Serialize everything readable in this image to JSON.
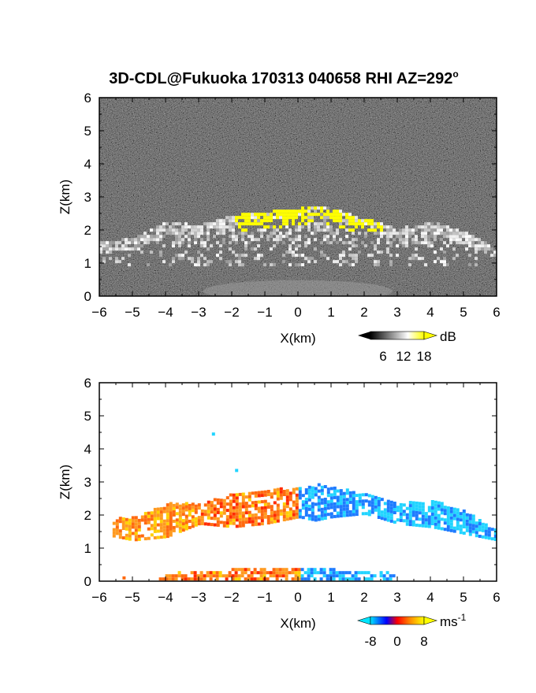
{
  "figure_title": "3D-CDL@Fukuoka 170313 040658 RHI AZ=292",
  "title_superscript": "o",
  "chart_data": [
    {
      "type": "heatmap",
      "panel": "reflectivity",
      "title": "3D-CDL@Fukuoka 170313 040658 RHI AZ=292°",
      "xlabel": "X(km)",
      "ylabel": "Z(km)",
      "xlim": [
        -6,
        6
      ],
      "ylim": [
        0,
        6
      ],
      "xticks": [
        "-6",
        "-5",
        "-4",
        "-3",
        "-2",
        "-1",
        "0",
        "1",
        "2",
        "3",
        "4",
        "5",
        "6"
      ],
      "yticks": [
        "0",
        "1",
        "2",
        "3",
        "4",
        "5",
        "6"
      ],
      "colorbar": {
        "unit": "dB",
        "ticks": [
          "6",
          "12",
          "18"
        ],
        "values": [
          6,
          12,
          18
        ],
        "range": [
          0,
          20
        ],
        "colors": [
          "#000000",
          "#ffffff",
          "#ffff00"
        ],
        "extend": "both"
      },
      "cloud_layer": {
        "top_profile_x": [
          -6,
          -5,
          -4,
          -3,
          -2,
          -1,
          0,
          0.5,
          1,
          2,
          3,
          4,
          5,
          6
        ],
        "top_profile_z": [
          1.6,
          1.7,
          2.2,
          2.1,
          2.4,
          2.5,
          2.6,
          2.7,
          2.6,
          2.3,
          2.0,
          2.2,
          1.9,
          1.4
        ],
        "bright_core_x": [
          -2,
          2.5
        ],
        "bright_core_z": [
          1.9,
          2.7
        ],
        "noise_background": "dark speckle"
      }
    },
    {
      "type": "heatmap",
      "panel": "doppler_velocity",
      "xlabel": "X(km)",
      "ylabel": "Z(km)",
      "xlim": [
        -6,
        6
      ],
      "ylim": [
        0,
        6
      ],
      "xticks": [
        "-6",
        "-5",
        "-4",
        "-3",
        "-2",
        "-1",
        "0",
        "1",
        "2",
        "3",
        "4",
        "5",
        "6"
      ],
      "yticks": [
        "0",
        "1",
        "2",
        "3",
        "4",
        "5",
        "6"
      ],
      "colorbar": {
        "unit": "ms",
        "unit_superscript": "-1",
        "ticks": [
          "-8",
          "0",
          "8"
        ],
        "values": [
          -8,
          0,
          8
        ],
        "range": [
          -10,
          10
        ],
        "colors": [
          "#00e5ff",
          "#0000ff",
          "#ff0000",
          "#ff9000",
          "#ffff00"
        ],
        "extend": "both"
      },
      "sign_change_x": 0,
      "left_side_sign": "positive",
      "right_side_sign": "negative",
      "upper_layer_x": [
        -6,
        6
      ],
      "upper_layer_z": [
        1.2,
        2.9
      ],
      "lower_layer_x": [
        -4.2,
        2.9
      ],
      "lower_layer_z": [
        0,
        0.45
      ]
    }
  ]
}
